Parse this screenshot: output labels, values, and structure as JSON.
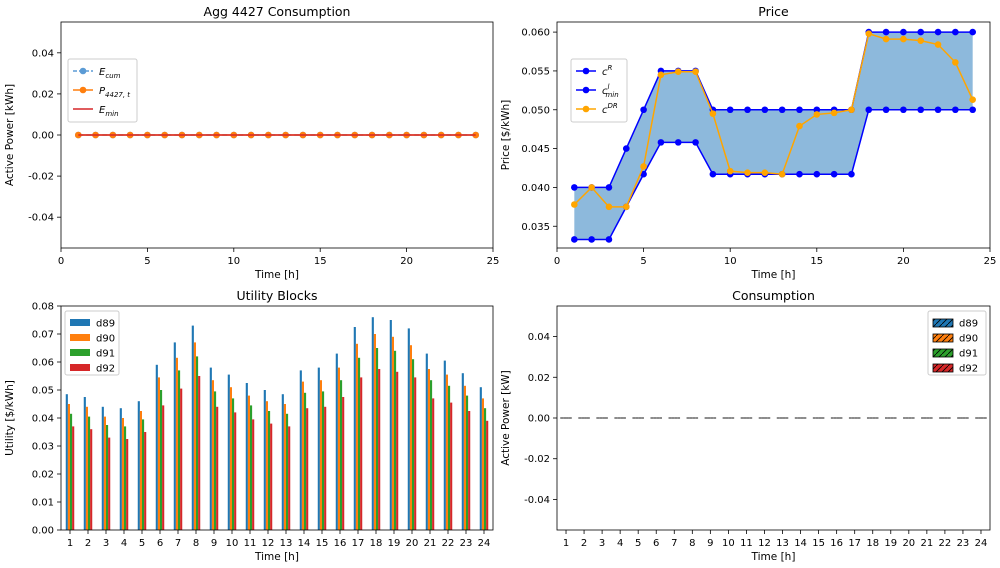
{
  "chart_data": [
    {
      "type": "line",
      "title": "Agg 4427 Consumption",
      "xlabel": "Time [h]",
      "ylabel": "Active Power [kWh]",
      "xlim": [
        0,
        25
      ],
      "ylim": [
        -0.055,
        0.055
      ],
      "xticks": [
        0,
        5,
        10,
        15,
        20,
        25
      ],
      "yticks": [
        -0.04,
        -0.02,
        0.0,
        0.02,
        0.04
      ],
      "legend_position": "center-left",
      "x": [
        1,
        2,
        3,
        4,
        5,
        6,
        7,
        8,
        9,
        10,
        11,
        12,
        13,
        14,
        15,
        16,
        17,
        18,
        19,
        20,
        21,
        22,
        23,
        24
      ],
      "series": [
        {
          "name": "E_cum",
          "legend_base": "E",
          "legend_sub": "cum",
          "color": "#5b9bd5",
          "style": "dashed-marker",
          "values": [
            0,
            0,
            0,
            0,
            0,
            0,
            0,
            0,
            0,
            0,
            0,
            0,
            0,
            0,
            0,
            0,
            0,
            0,
            0,
            0,
            0,
            0,
            0,
            0
          ]
        },
        {
          "name": "P_4427,t",
          "legend_base": "P",
          "legend_sub": "4427, t",
          "color": "#ff7f0e",
          "style": "solid-marker",
          "values": [
            0,
            0,
            0,
            0,
            0,
            0,
            0,
            0,
            0,
            0,
            0,
            0,
            0,
            0,
            0,
            0,
            0,
            0,
            0,
            0,
            0,
            0,
            0,
            0
          ]
        },
        {
          "name": "E_min",
          "legend_base": "E",
          "legend_sub": "min",
          "color": "#d62728",
          "style": "solid",
          "values": [
            0,
            0,
            0,
            0,
            0,
            0,
            0,
            0,
            0,
            0,
            0,
            0,
            0,
            0,
            0,
            0,
            0,
            0,
            0,
            0,
            0,
            0,
            0,
            0
          ]
        }
      ]
    },
    {
      "type": "line",
      "title": "Price",
      "xlabel": "Time [h]",
      "ylabel": "Price [$/kWh]",
      "xlim": [
        0,
        25
      ],
      "ylim": [
        0.0322,
        0.0613
      ],
      "xticks": [
        0,
        5,
        10,
        15,
        20,
        25
      ],
      "yticks": [
        0.035,
        0.04,
        0.045,
        0.05,
        0.055,
        0.06
      ],
      "yticklabels": [
        "0.035",
        "0.040",
        "0.045",
        "0.050",
        "0.055",
        "0.060"
      ],
      "legend_position": "upper-left",
      "fill_color": "#8db9dc",
      "x": [
        1,
        2,
        3,
        4,
        5,
        6,
        7,
        8,
        9,
        10,
        11,
        12,
        13,
        14,
        15,
        16,
        17,
        18,
        19,
        20,
        21,
        22,
        23,
        24
      ],
      "series": [
        {
          "name": "c^R",
          "legend_base": "c",
          "legend_sup": "R",
          "color": "#0000ff",
          "values": [
            0.04,
            0.04,
            0.04,
            0.045,
            0.05,
            0.055,
            0.055,
            0.055,
            0.05,
            0.05,
            0.05,
            0.05,
            0.05,
            0.05,
            0.05,
            0.05,
            0.05,
            0.06,
            0.06,
            0.06,
            0.06,
            0.06,
            0.06,
            0.06
          ]
        },
        {
          "name": "c^l_min",
          "legend_base": "c",
          "legend_sup": "l",
          "legend_sub": "min",
          "color": "#0000ff",
          "values": [
            0.0333,
            0.0333,
            0.0333,
            0.0375,
            0.0417,
            0.0458,
            0.0458,
            0.0458,
            0.0417,
            0.0417,
            0.0417,
            0.0417,
            0.0417,
            0.0417,
            0.0417,
            0.0417,
            0.0417,
            0.05,
            0.05,
            0.05,
            0.05,
            0.05,
            0.05,
            0.05
          ]
        },
        {
          "name": "c^DR",
          "legend_base": "c",
          "legend_sup": "DR",
          "color": "#ffa500",
          "values": [
            0.0378,
            0.04,
            0.0375,
            0.0375,
            0.0427,
            0.0545,
            0.0549,
            0.0549,
            0.0495,
            0.0421,
            0.0419,
            0.0419,
            0.0417,
            0.0479,
            0.0494,
            0.0496,
            0.05,
            0.0598,
            0.0591,
            0.0591,
            0.0589,
            0.0584,
            0.0561,
            0.0513
          ]
        }
      ]
    },
    {
      "type": "bar",
      "title": "Utility Blocks",
      "xlabel": "Time [h]",
      "ylabel": "Utility [$/kWh]",
      "ylim": [
        0,
        0.08
      ],
      "yticks": [
        0.0,
        0.01,
        0.02,
        0.03,
        0.04,
        0.05,
        0.06,
        0.07,
        0.08
      ],
      "yticklabels": [
        "0.00",
        "0.01",
        "0.02",
        "0.03",
        "0.04",
        "0.05",
        "0.06",
        "0.07",
        "0.08"
      ],
      "categories": [
        "1",
        "2",
        "3",
        "4",
        "5",
        "6",
        "7",
        "8",
        "9",
        "10",
        "11",
        "12",
        "13",
        "14",
        "15",
        "16",
        "17",
        "18",
        "19",
        "20",
        "21",
        "22",
        "23",
        "24"
      ],
      "legend_position": "upper-left",
      "series": [
        {
          "name": "d89",
          "color": "#1f77b4",
          "values": [
            0.0485,
            0.0475,
            0.044,
            0.0435,
            0.046,
            0.059,
            0.067,
            0.073,
            0.058,
            0.0555,
            0.0525,
            0.05,
            0.0485,
            0.057,
            0.058,
            0.063,
            0.0725,
            0.076,
            0.075,
            0.072,
            0.063,
            0.0605,
            0.056,
            0.051
          ]
        },
        {
          "name": "d90",
          "color": "#ff7f0e",
          "values": [
            0.045,
            0.044,
            0.0405,
            0.04,
            0.0425,
            0.0545,
            0.0615,
            0.067,
            0.0535,
            0.051,
            0.048,
            0.046,
            0.045,
            0.053,
            0.0535,
            0.058,
            0.0665,
            0.07,
            0.069,
            0.066,
            0.0575,
            0.0555,
            0.0515,
            0.047
          ]
        },
        {
          "name": "d91",
          "color": "#2ca02c",
          "values": [
            0.0415,
            0.0405,
            0.0375,
            0.037,
            0.0395,
            0.05,
            0.057,
            0.062,
            0.0495,
            0.047,
            0.0445,
            0.0425,
            0.0415,
            0.049,
            0.0495,
            0.0535,
            0.0615,
            0.065,
            0.064,
            0.061,
            0.0535,
            0.0515,
            0.048,
            0.0435
          ]
        },
        {
          "name": "d92",
          "color": "#d62728",
          "values": [
            0.037,
            0.036,
            0.033,
            0.0325,
            0.035,
            0.0445,
            0.0505,
            0.055,
            0.044,
            0.042,
            0.0395,
            0.038,
            0.037,
            0.0435,
            0.044,
            0.0475,
            0.0545,
            0.0575,
            0.0565,
            0.0545,
            0.047,
            0.0455,
            0.0425,
            0.039
          ]
        }
      ]
    },
    {
      "type": "bar",
      "title": "Consumption",
      "xlabel": "Time [h]",
      "ylabel": "Active Power [kW]",
      "ylim": [
        -0.055,
        0.055
      ],
      "yticks": [
        -0.04,
        -0.02,
        0.0,
        0.02,
        0.04
      ],
      "categories": [
        "1",
        "2",
        "3",
        "4",
        "5",
        "6",
        "7",
        "8",
        "9",
        "10",
        "11",
        "12",
        "13",
        "14",
        "15",
        "16",
        "17",
        "18",
        "19",
        "20",
        "21",
        "22",
        "23",
        "24"
      ],
      "legend_position": "upper-right",
      "series": [
        {
          "name": "d89",
          "color": "#1f77b4",
          "hatch": "/",
          "values": [
            0,
            0,
            0,
            0,
            0,
            0,
            0,
            0,
            0,
            0,
            0,
            0,
            0,
            0,
            0,
            0,
            0,
            0,
            0,
            0,
            0,
            0,
            0,
            0
          ]
        },
        {
          "name": "d90",
          "color": "#ff7f0e",
          "hatch": "/",
          "values": [
            0,
            0,
            0,
            0,
            0,
            0,
            0,
            0,
            0,
            0,
            0,
            0,
            0,
            0,
            0,
            0,
            0,
            0,
            0,
            0,
            0,
            0,
            0,
            0
          ]
        },
        {
          "name": "d91",
          "color": "#2ca02c",
          "hatch": "/",
          "values": [
            0,
            0,
            0,
            0,
            0,
            0,
            0,
            0,
            0,
            0,
            0,
            0,
            0,
            0,
            0,
            0,
            0,
            0,
            0,
            0,
            0,
            0,
            0,
            0
          ]
        },
        {
          "name": "d92",
          "color": "#d62728",
          "hatch": "/",
          "values": [
            0,
            0,
            0,
            0,
            0,
            0,
            0,
            0,
            0,
            0,
            0,
            0,
            0,
            0,
            0,
            0,
            0,
            0,
            0,
            0,
            0,
            0,
            0,
            0
          ]
        }
      ]
    }
  ]
}
